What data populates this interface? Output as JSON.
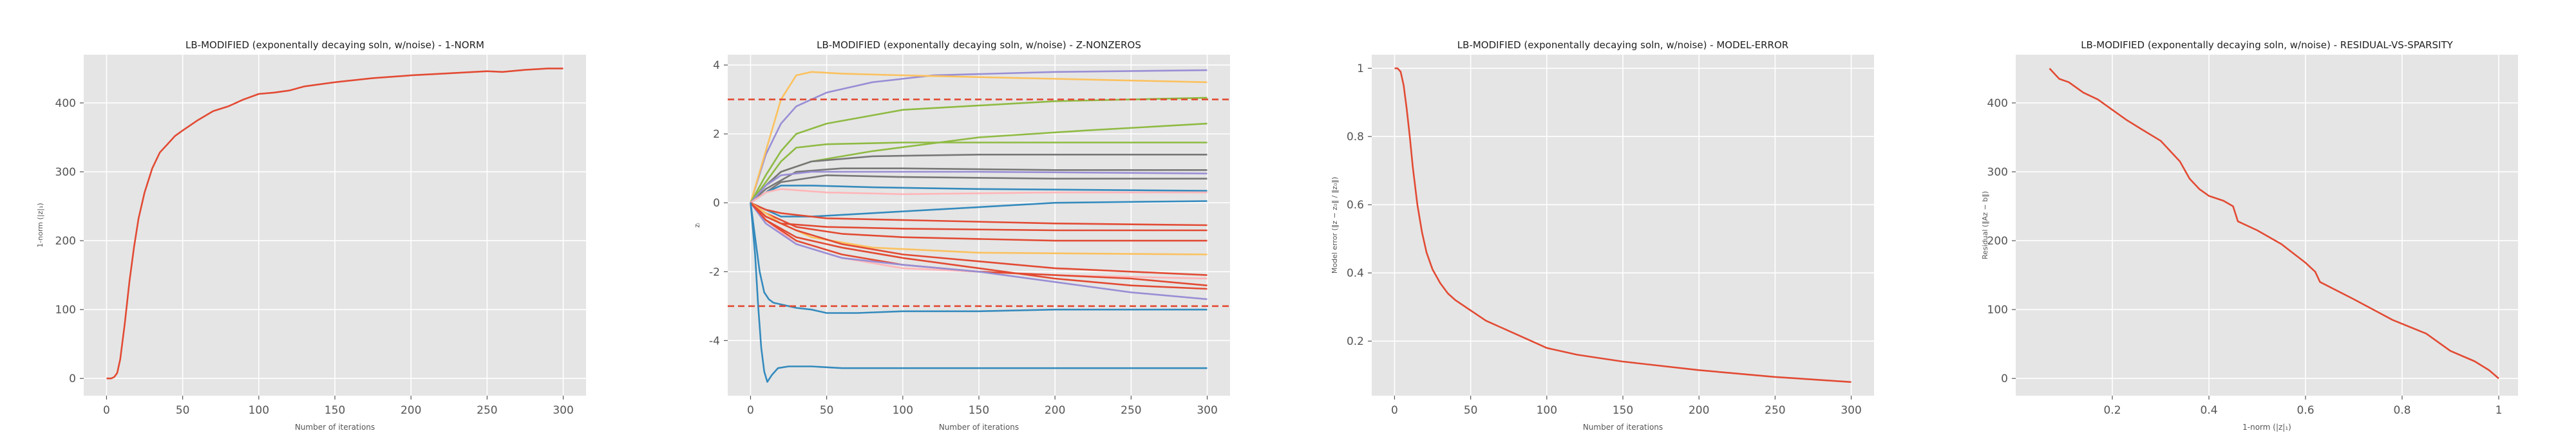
{
  "theme": {
    "panel_bg": "#e5e5e5",
    "grid": "#ffffff",
    "text": "#555555",
    "title": "#222222"
  },
  "chart_data": [
    {
      "type": "line",
      "title": "LB-MODIFIED (exponentally decaying soln, w/noise) - 1-NORM",
      "xlabel": "Number of iterations",
      "ylabel": "1-norm (|z|₁)",
      "xlim": [
        -15,
        315
      ],
      "ylim": [
        -25,
        470
      ],
      "xticks": [
        0,
        50,
        100,
        150,
        200,
        250,
        300
      ],
      "yticks": [
        0,
        100,
        200,
        300,
        400
      ],
      "grid": true,
      "series": [
        {
          "color": "#e24a33",
          "x": [
            0,
            3,
            5,
            7,
            9,
            12,
            15,
            18,
            21,
            25,
            30,
            35,
            40,
            45,
            50,
            60,
            70,
            80,
            90,
            100,
            110,
            120,
            130,
            150,
            175,
            200,
            225,
            250,
            260,
            275,
            290,
            300
          ],
          "y": [
            0,
            0,
            2,
            8,
            28,
            80,
            140,
            190,
            232,
            270,
            305,
            328,
            340,
            352,
            360,
            375,
            388,
            395,
            405,
            413,
            415,
            418,
            424,
            430,
            436,
            440,
            443,
            446,
            445,
            448,
            450,
            450
          ]
        }
      ]
    },
    {
      "type": "line",
      "title": "LB-MODIFIED (exponentally decaying soln, w/noise) - Z-NONZEROS",
      "xlabel": "Number of iterations",
      "ylabel": "zᵢ",
      "xlim": [
        -15,
        315
      ],
      "ylim": [
        -5.6,
        4.3
      ],
      "xticks": [
        0,
        50,
        100,
        150,
        200,
        250,
        300
      ],
      "yticks": [
        -4,
        -2,
        0,
        2,
        4
      ],
      "grid": true,
      "hlines": [
        {
          "y": 3,
          "color": "#e24a33",
          "style": "dashed"
        },
        {
          "y": -3,
          "color": "#e24a33",
          "style": "dashed"
        }
      ],
      "series": [
        {
          "color": "#988ed5",
          "x": [
            0,
            10,
            20,
            30,
            50,
            80,
            120,
            200,
            300
          ],
          "y": [
            0,
            1.4,
            2.3,
            2.8,
            3.2,
            3.5,
            3.7,
            3.8,
            3.85
          ]
        },
        {
          "color": "#fbc15e",
          "x": [
            0,
            10,
            20,
            30,
            40,
            60,
            100,
            200,
            300
          ],
          "y": [
            0,
            1.5,
            3.0,
            3.7,
            3.8,
            3.75,
            3.7,
            3.6,
            3.5
          ]
        },
        {
          "color": "#8eba42",
          "x": [
            0,
            10,
            20,
            30,
            50,
            100,
            200,
            300
          ],
          "y": [
            0,
            0.8,
            1.5,
            2.0,
            2.3,
            2.7,
            2.95,
            3.05
          ]
        },
        {
          "color": "#8eba42",
          "x": [
            0,
            10,
            20,
            40,
            80,
            150,
            220,
            300
          ],
          "y": [
            0,
            0.5,
            0.9,
            1.2,
            1.5,
            1.9,
            2.1,
            2.3
          ]
        },
        {
          "color": "#8eba42",
          "x": [
            0,
            10,
            20,
            30,
            50,
            100,
            200,
            300
          ],
          "y": [
            0,
            0.6,
            1.2,
            1.6,
            1.7,
            1.75,
            1.75,
            1.75
          ]
        },
        {
          "color": "#777777",
          "x": [
            0,
            10,
            20,
            40,
            80,
            150,
            300
          ],
          "y": [
            0,
            0.5,
            0.9,
            1.2,
            1.35,
            1.4,
            1.4
          ]
        },
        {
          "color": "#777777",
          "x": [
            0,
            10,
            30,
            60,
            100,
            200,
            300
          ],
          "y": [
            0,
            0.4,
            0.9,
            1.0,
            1.0,
            0.95,
            0.95
          ]
        },
        {
          "color": "#988ed5",
          "x": [
            0,
            10,
            20,
            40,
            80,
            150,
            300
          ],
          "y": [
            0,
            0.5,
            0.8,
            0.9,
            0.9,
            0.9,
            0.85
          ]
        },
        {
          "color": "#777777",
          "x": [
            0,
            10,
            20,
            50,
            100,
            200,
            300
          ],
          "y": [
            0,
            0.3,
            0.6,
            0.8,
            0.75,
            0.7,
            0.7
          ]
        },
        {
          "color": "#348abd",
          "x": [
            0,
            10,
            20,
            40,
            80,
            150,
            300
          ],
          "y": [
            0,
            0.3,
            0.5,
            0.5,
            0.45,
            0.4,
            0.35
          ]
        },
        {
          "color": "#ffb5b8",
          "x": [
            0,
            10,
            20,
            50,
            100,
            200,
            300
          ],
          "y": [
            0,
            0.3,
            0.4,
            0.3,
            0.25,
            0.3,
            0.3
          ]
        },
        {
          "color": "#348abd",
          "x": [
            0,
            10,
            20,
            40,
            80,
            120,
            160,
            200,
            300
          ],
          "y": [
            0,
            -0.2,
            -0.4,
            -0.4,
            -0.3,
            -0.2,
            -0.1,
            0.0,
            0.05
          ]
        },
        {
          "color": "#e24a33",
          "x": [
            0,
            10,
            20,
            50,
            100,
            200,
            300
          ],
          "y": [
            0,
            -0.2,
            -0.3,
            -0.45,
            -0.5,
            -0.6,
            -0.65
          ]
        },
        {
          "color": "#e24a33",
          "x": [
            0,
            10,
            20,
            50,
            100,
            200,
            300
          ],
          "y": [
            0,
            -0.4,
            -0.6,
            -0.7,
            -0.75,
            -0.8,
            -0.8
          ]
        },
        {
          "color": "#e24a33",
          "x": [
            0,
            10,
            30,
            60,
            100,
            200,
            300
          ],
          "y": [
            0,
            -0.3,
            -0.7,
            -0.9,
            -1.0,
            -1.1,
            -1.1
          ]
        },
        {
          "color": "#fbc15e",
          "x": [
            0,
            10,
            20,
            40,
            80,
            150,
            300
          ],
          "y": [
            0,
            -0.3,
            -0.6,
            -1.0,
            -1.3,
            -1.45,
            -1.5
          ]
        },
        {
          "color": "#e24a33",
          "x": [
            0,
            10,
            30,
            60,
            100,
            200,
            300
          ],
          "y": [
            0,
            -0.4,
            -0.8,
            -1.2,
            -1.5,
            -1.9,
            -2.1
          ]
        },
        {
          "color": "#ffb5b8",
          "x": [
            0,
            10,
            30,
            60,
            100,
            150,
            200,
            300
          ],
          "y": [
            0,
            -0.5,
            -1.2,
            -1.6,
            -1.9,
            -2.0,
            -2.1,
            -2.2
          ]
        },
        {
          "color": "#e24a33",
          "x": [
            0,
            10,
            30,
            60,
            100,
            150,
            200,
            250,
            300
          ],
          "y": [
            0,
            -0.5,
            -1.1,
            -1.5,
            -1.8,
            -2.0,
            -2.1,
            -2.2,
            -2.4
          ]
        },
        {
          "color": "#988ed5",
          "x": [
            0,
            10,
            30,
            60,
            100,
            150,
            200,
            250,
            300
          ],
          "y": [
            0,
            -0.6,
            -1.2,
            -1.6,
            -1.8,
            -2.0,
            -2.3,
            -2.6,
            -2.8
          ]
        },
        {
          "color": "#e24a33",
          "x": [
            0,
            10,
            30,
            60,
            100,
            150,
            200,
            250,
            300
          ],
          "y": [
            0,
            -0.5,
            -1.0,
            -1.3,
            -1.6,
            -1.9,
            -2.2,
            -2.4,
            -2.5
          ]
        },
        {
          "color": "#348abd",
          "x": [
            0,
            3,
            6,
            9,
            12,
            15,
            20,
            25,
            30,
            40,
            50,
            70,
            100,
            150,
            200,
            300
          ],
          "y": [
            0,
            -1.0,
            -2.0,
            -2.6,
            -2.8,
            -2.9,
            -2.95,
            -3.0,
            -3.05,
            -3.1,
            -3.2,
            -3.2,
            -3.15,
            -3.15,
            -3.1,
            -3.1
          ]
        },
        {
          "color": "#348abd",
          "x": [
            0,
            3,
            5,
            7,
            9,
            11,
            14,
            18,
            25,
            40,
            60,
            100,
            150,
            200,
            300
          ],
          "y": [
            0,
            -1.5,
            -3.0,
            -4.2,
            -4.9,
            -5.2,
            -5.0,
            -4.8,
            -4.75,
            -4.75,
            -4.8,
            -4.8,
            -4.8,
            -4.8,
            -4.8
          ]
        }
      ]
    },
    {
      "type": "line",
      "title": "LB-MODIFIED (exponentally decaying soln, w/noise) - MODEL-ERROR",
      "xlabel": "Number of iterations",
      "ylabel": "Model error (‖z − z₀‖ / ‖z₀‖)",
      "xlim": [
        -15,
        315
      ],
      "ylim": [
        0.04,
        1.04
      ],
      "xticks": [
        0,
        50,
        100,
        150,
        200,
        250,
        300
      ],
      "yticks": [
        0.2,
        0.4,
        0.6,
        0.8,
        1.0
      ],
      "grid": true,
      "series": [
        {
          "color": "#e24a33",
          "x": [
            0,
            2,
            4,
            6,
            8,
            10,
            12,
            15,
            18,
            21,
            25,
            30,
            35,
            40,
            50,
            60,
            70,
            80,
            90,
            100,
            120,
            150,
            200,
            250,
            300
          ],
          "y": [
            1.0,
            1.0,
            0.99,
            0.95,
            0.88,
            0.8,
            0.71,
            0.6,
            0.52,
            0.46,
            0.41,
            0.37,
            0.34,
            0.32,
            0.29,
            0.26,
            0.24,
            0.22,
            0.2,
            0.18,
            0.16,
            0.14,
            0.115,
            0.095,
            0.08
          ]
        }
      ]
    },
    {
      "type": "line",
      "title": "LB-MODIFIED (exponentally decaying soln, w/noise) - RESIDUAL-VS-SPARSITY",
      "xlabel": "1-norm (|z|₁)",
      "ylabel": "Residual (‖Az − b‖)",
      "xlim": [
        0.0,
        1.04
      ],
      "ylim": [
        -25,
        470
      ],
      "xticks": [
        0.2,
        0.4,
        0.6,
        0.8,
        1.0
      ],
      "yticks": [
        0,
        100,
        200,
        300,
        400
      ],
      "grid": true,
      "series": [
        {
          "color": "#e24a33",
          "x": [
            0.07,
            0.09,
            0.11,
            0.14,
            0.17,
            0.2,
            0.23,
            0.26,
            0.3,
            0.34,
            0.36,
            0.38,
            0.4,
            0.43,
            0.45,
            0.46,
            0.5,
            0.55,
            0.6,
            0.62,
            0.63,
            0.7,
            0.78,
            0.85,
            0.9,
            0.95,
            0.98,
            1.0
          ],
          "y": [
            450,
            435,
            430,
            415,
            405,
            390,
            375,
            362,
            345,
            315,
            290,
            275,
            265,
            258,
            250,
            228,
            215,
            195,
            168,
            155,
            140,
            115,
            85,
            65,
            40,
            25,
            12,
            0
          ]
        }
      ]
    }
  ]
}
